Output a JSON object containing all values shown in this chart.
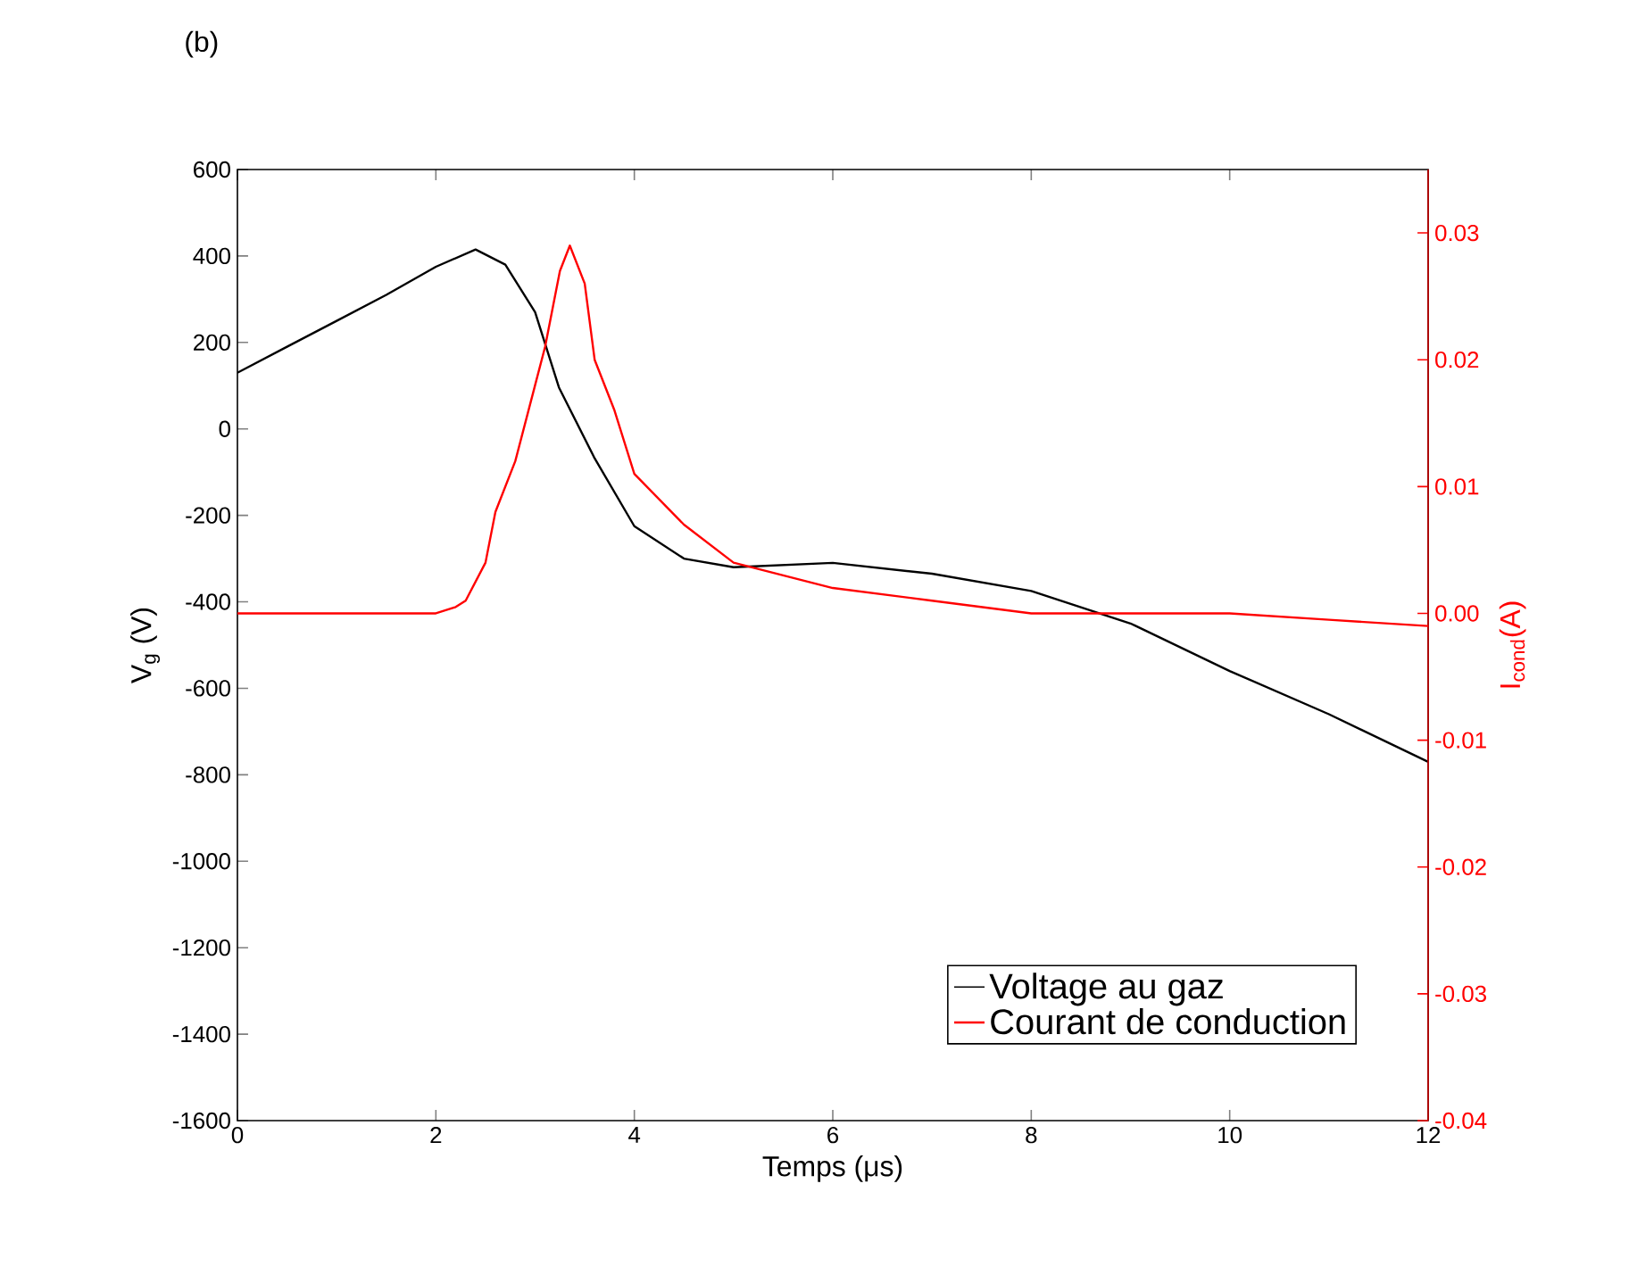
{
  "chart_data": {
    "type": "line",
    "title": "(b)",
    "xlabel": "Temps (μs)",
    "ylabel": "V$_{g}$ (V)",
    "y2label": "I$_{cond}$(A)",
    "xlim": [
      0,
      12
    ],
    "xticks": [
      0,
      2,
      4,
      6,
      8,
      10,
      12
    ],
    "ylim": [
      -1600,
      600
    ],
    "yticks": [
      -1600,
      -1400,
      -1200,
      -1000,
      -800,
      -600,
      -400,
      -200,
      0,
      200,
      400,
      600
    ],
    "y2lim": [
      -0.04,
      0.035
    ],
    "y2ticks": [
      {
        "value": -0.04,
        "label": "-0.04"
      },
      {
        "value": -0.03,
        "label": "-0.03"
      },
      {
        "value": -0.02,
        "label": "-0.02"
      },
      {
        "value": -0.01,
        "label": "-0.01"
      },
      {
        "value": 0,
        "label": "0.00"
      },
      {
        "value": 0.01,
        "label": "0.01"
      },
      {
        "value": 0.02,
        "label": "0.02"
      },
      {
        "value": 0.03,
        "label": "0.03"
      }
    ],
    "legend": "bottom right",
    "marker": "none",
    "line_style": "solid",
    "series": [
      {
        "name": "Voltage au gaz",
        "color": "#000000",
        "x": [
          0,
          0.5,
          1,
          1.5,
          2,
          2.4,
          2.7,
          3.0,
          3.24,
          3.6,
          4.0,
          4.5,
          5,
          6,
          7,
          8,
          9,
          10,
          11,
          12
        ],
        "values": [
          130,
          190,
          250,
          310,
          375,
          415,
          380,
          270,
          96,
          -68,
          -225,
          -300,
          -320,
          -310,
          -335,
          -375,
          -450,
          -560,
          -660,
          -770
        ]
      },
      {
        "name": "Courant de conduction",
        "color": "#ff0000",
        "axis": "y2",
        "x": [
          0,
          0.5,
          1,
          1.5,
          2,
          2.2,
          2.3,
          2.5,
          2.6,
          2.8,
          3.0,
          3.1,
          3.25,
          3.35,
          3.5,
          3.6,
          3.8,
          4.0,
          4.5,
          5,
          6,
          7,
          8,
          9,
          10,
          11,
          12
        ],
        "values": [
          0.0,
          0.0,
          0.0,
          0.0,
          0.0,
          0.0005,
          0.001,
          0.004,
          0.008,
          0.012,
          0.018,
          0.021,
          0.027,
          0.029,
          0.026,
          0.02,
          0.016,
          0.011,
          0.007,
          0.004,
          0.002,
          0.001,
          0.0,
          0.0,
          0.0,
          -0.0005,
          -0.001
        ]
      }
    ]
  }
}
